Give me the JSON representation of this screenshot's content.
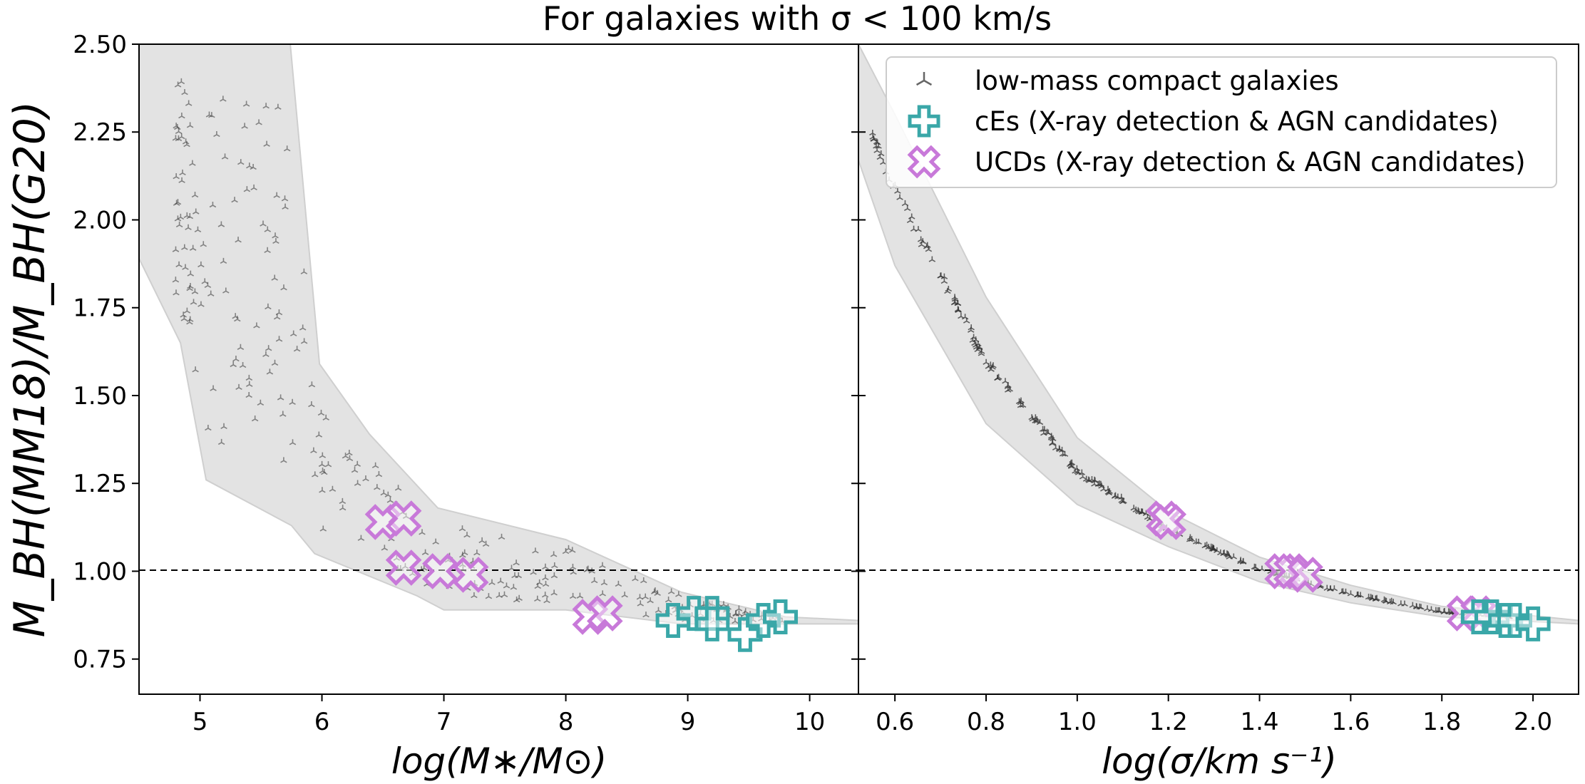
{
  "chart_data": {
    "type": "scatter",
    "title": "For galaxies with σ < 100 km/s",
    "ylabel": "M_BH(MM18)/M_BH(G20)",
    "ylim": [
      0.65,
      2.5
    ],
    "yticks": [
      "0.75",
      "1.00",
      "1.25",
      "1.50",
      "1.75",
      "2.00",
      "2.25",
      "2.50"
    ],
    "reference_line": 1.0,
    "legend": {
      "placement": "top-right",
      "entries": [
        {
          "series": "low-mass",
          "label": "low-mass compact galaxies"
        },
        {
          "series": "cEs",
          "label": "cEs (X-ray detection & AGN candidates)"
        },
        {
          "series": "UCDs",
          "label": "UCDs (X-ray detection & AGN candidates)"
        }
      ]
    },
    "colors": {
      "low_mass": "#555555",
      "cEs": "#3aa7a8",
      "UCDs": "#c879d9",
      "band": "#e3e3e3"
    },
    "panels": [
      {
        "xlabel": "log(M∗/M⊙)",
        "xlim": [
          4.5,
          10.4
        ],
        "xticks": [
          "5",
          "6",
          "7",
          "8",
          "9",
          "10"
        ],
        "band_upper": [
          [
            4.5,
            2.5
          ],
          [
            5.74,
            2.5
          ],
          [
            5.98,
            1.59
          ],
          [
            6.39,
            1.39
          ],
          [
            6.95,
            1.18
          ],
          [
            8.0,
            1.09
          ],
          [
            8.95,
            0.94
          ],
          [
            9.8,
            0.87
          ],
          [
            10.4,
            0.86
          ]
        ],
        "band_lower": [
          [
            4.5,
            1.89
          ],
          [
            4.84,
            1.65
          ],
          [
            5.05,
            1.26
          ],
          [
            5.75,
            1.13
          ],
          [
            5.94,
            1.05
          ],
          [
            6.78,
            0.93
          ],
          [
            7.0,
            0.89
          ],
          [
            8.0,
            0.89
          ],
          [
            8.95,
            0.85
          ],
          [
            10.4,
            0.85
          ]
        ],
        "cEs": [
          [
            8.88,
            0.86
          ],
          [
            9.05,
            0.88
          ],
          [
            9.2,
            0.88
          ],
          [
            9.2,
            0.85
          ],
          [
            9.47,
            0.82
          ],
          [
            9.62,
            0.86
          ],
          [
            9.76,
            0.87
          ]
        ],
        "UCDs": [
          [
            6.5,
            1.14
          ],
          [
            6.67,
            1.15
          ],
          [
            6.67,
            1.01
          ],
          [
            6.97,
            1.0
          ],
          [
            7.22,
            0.99
          ],
          [
            8.2,
            0.87
          ],
          [
            8.32,
            0.88
          ]
        ]
      },
      {
        "xlabel": "log(σ/km s⁻¹)",
        "xlim": [
          0.52,
          2.1
        ],
        "xticks": [
          "0.6",
          "0.8",
          "1.0",
          "1.2",
          "1.4",
          "1.6",
          "1.8",
          "2.0"
        ],
        "band_upper": [
          [
            0.52,
            2.5
          ],
          [
            0.6,
            2.3
          ],
          [
            0.8,
            1.78
          ],
          [
            1.0,
            1.38
          ],
          [
            1.2,
            1.17
          ],
          [
            1.4,
            1.04
          ],
          [
            1.6,
            0.96
          ],
          [
            1.8,
            0.9
          ],
          [
            2.1,
            0.86
          ]
        ],
        "band_lower": [
          [
            0.52,
            2.17
          ],
          [
            0.6,
            1.87
          ],
          [
            0.8,
            1.42
          ],
          [
            1.0,
            1.19
          ],
          [
            1.2,
            1.07
          ],
          [
            1.4,
            0.97
          ],
          [
            1.6,
            0.91
          ],
          [
            1.8,
            0.87
          ],
          [
            2.1,
            0.85
          ]
        ],
        "cEs": [
          [
            1.88,
            0.87
          ],
          [
            1.91,
            0.87
          ],
          [
            1.94,
            0.86
          ],
          [
            1.96,
            0.86
          ],
          [
            2.0,
            0.85
          ]
        ],
        "UCDs": [
          [
            1.19,
            1.15
          ],
          [
            1.2,
            1.14
          ],
          [
            1.45,
            1.0
          ],
          [
            1.47,
            1.0
          ],
          [
            1.5,
            0.99
          ],
          [
            1.85,
            0.88
          ],
          [
            1.88,
            0.88
          ]
        ]
      }
    ]
  }
}
